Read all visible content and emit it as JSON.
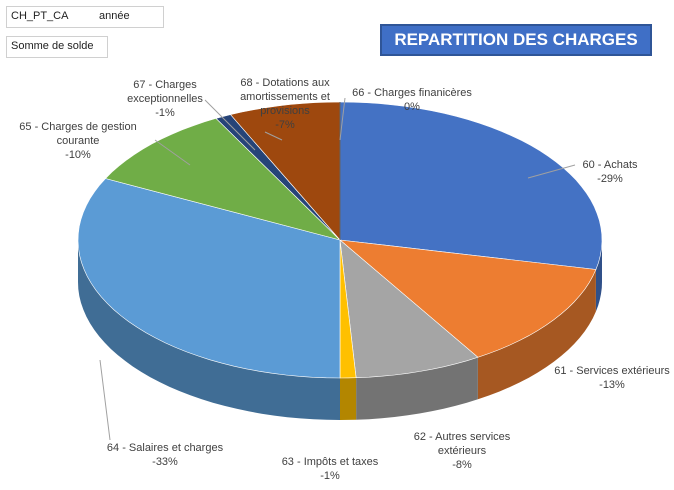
{
  "chart_data": {
    "type": "pie",
    "title": "REPARTITION DES CHARGES",
    "filters": [
      "CH_PT_CA",
      "année"
    ],
    "value_field": "Somme de solde",
    "categories": [
      "60 - Achats",
      "61 - Services extérieurs",
      "62 - Autres services extérieurs",
      "63 - Impôts et taxes",
      "64 - Salaires et charges",
      "65 - Charges de gestion courante",
      "67 - Charges exceptionnelles",
      "68 - Dotations aux amortissements et provisions",
      "66 - Charges finanicères"
    ],
    "values": [
      -29,
      -13,
      -8,
      -1,
      -33,
      -10,
      -1,
      -7,
      0
    ],
    "value_labels": [
      "-29%",
      "-13%",
      "-8%",
      "-1%",
      "-33%",
      "-10%",
      "-1%",
      "-7%",
      "0%"
    ],
    "colors": [
      "#4472c4",
      "#ed7d31",
      "#a5a5a5",
      "#ffc000",
      "#5b9bd5",
      "#70ad47",
      "#264478",
      "#9e480e",
      "#636363"
    ]
  }
}
